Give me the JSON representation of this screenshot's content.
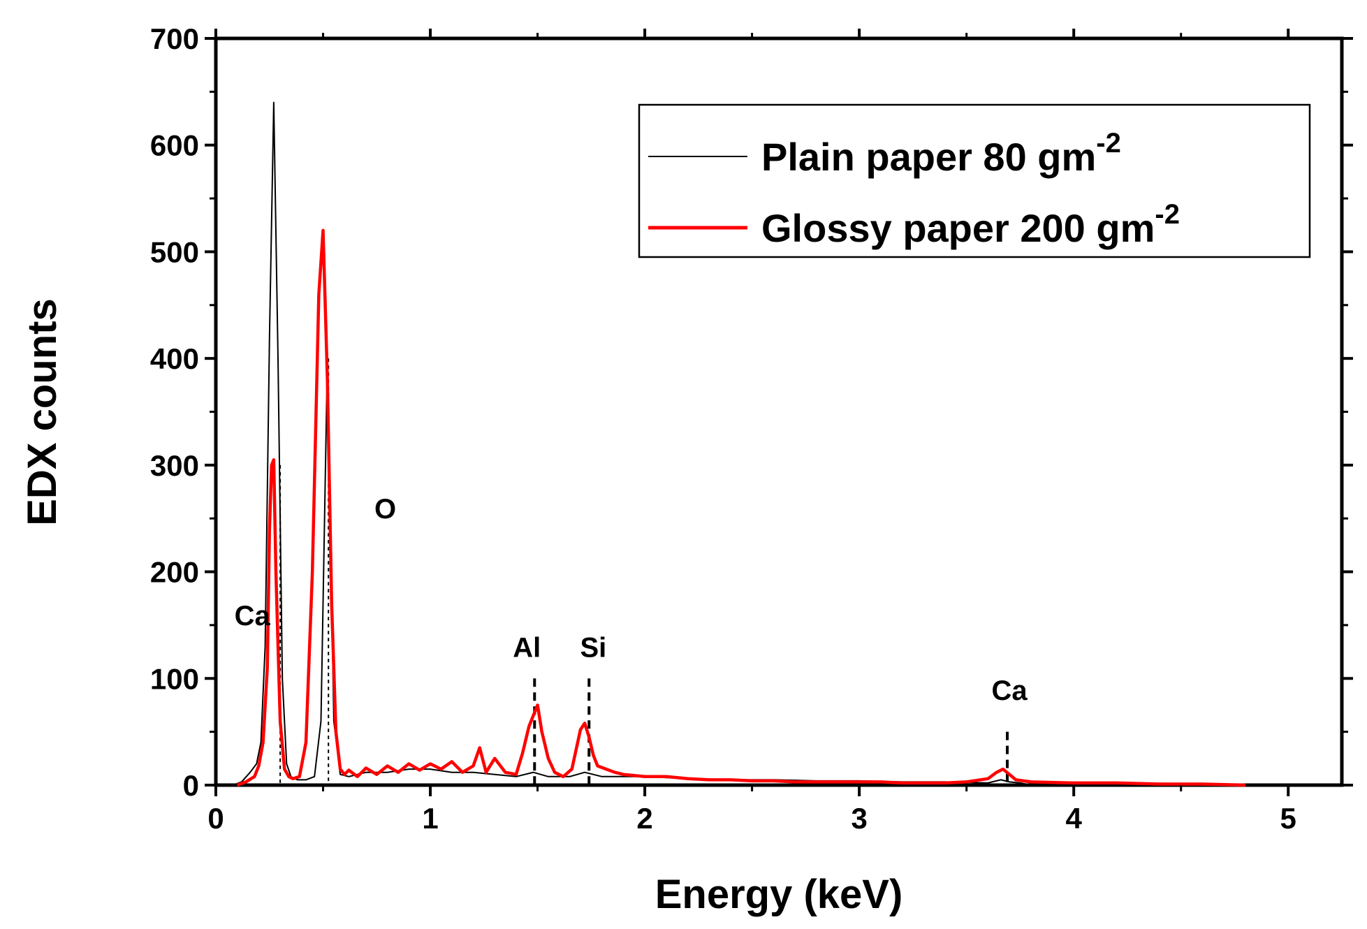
{
  "chart_data": {
    "type": "line",
    "title": "",
    "xlabel": "Energy (keV)",
    "ylabel": "EDX counts",
    "xlim": [
      0,
      5.25
    ],
    "ylim": [
      0,
      700
    ],
    "xticks": [
      0,
      1,
      2,
      3,
      4,
      5
    ],
    "yticks": [
      0,
      100,
      200,
      300,
      400,
      500,
      600,
      700
    ],
    "xtick_labels": [
      "0",
      "1",
      "2",
      "3",
      "4",
      "5"
    ],
    "ytick_labels": [
      "0",
      "100",
      "200",
      "300",
      "400",
      "500",
      "600",
      "700"
    ],
    "grid": false,
    "legend_position": "top-right",
    "series": [
      {
        "name": "Plain paper 80 gm",
        "superscript": "-2",
        "color": "#000000",
        "x": [
          0.08,
          0.12,
          0.16,
          0.19,
          0.21,
          0.23,
          0.25,
          0.27,
          0.29,
          0.31,
          0.33,
          0.35,
          0.38,
          0.42,
          0.46,
          0.49,
          0.52,
          0.55,
          0.58,
          0.62,
          0.7,
          0.8,
          0.9,
          1.0,
          1.1,
          1.2,
          1.3,
          1.4,
          1.48,
          1.55,
          1.65,
          1.72,
          1.8,
          1.9,
          2.0,
          2.2,
          2.4,
          2.6,
          2.8,
          3.0,
          3.2,
          3.4,
          3.6,
          3.66,
          3.7,
          3.75,
          3.8
        ],
        "values": [
          0,
          3,
          12,
          20,
          40,
          130,
          420,
          640,
          400,
          100,
          20,
          8,
          5,
          5,
          8,
          60,
          400,
          60,
          10,
          8,
          12,
          12,
          15,
          15,
          12,
          12,
          10,
          8,
          12,
          8,
          8,
          12,
          8,
          8,
          8,
          6,
          5,
          5,
          4,
          4,
          3,
          3,
          2,
          5,
          3,
          2,
          0
        ]
      },
      {
        "name": "Glossy paper 200 gm",
        "superscript": "-2",
        "color": "#ff0000",
        "x": [
          0.1,
          0.14,
          0.18,
          0.2,
          0.22,
          0.24,
          0.25,
          0.26,
          0.27,
          0.28,
          0.3,
          0.32,
          0.34,
          0.36,
          0.39,
          0.42,
          0.45,
          0.48,
          0.5,
          0.52,
          0.54,
          0.56,
          0.58,
          0.6,
          0.62,
          0.66,
          0.7,
          0.75,
          0.8,
          0.85,
          0.9,
          0.95,
          1.0,
          1.05,
          1.1,
          1.15,
          1.2,
          1.23,
          1.26,
          1.3,
          1.35,
          1.4,
          1.43,
          1.46,
          1.48,
          1.5,
          1.52,
          1.55,
          1.58,
          1.62,
          1.66,
          1.7,
          1.72,
          1.74,
          1.76,
          1.78,
          1.82,
          1.86,
          1.9,
          2.0,
          2.1,
          2.2,
          2.3,
          2.4,
          2.5,
          2.6,
          2.7,
          2.8,
          2.9,
          3.0,
          3.1,
          3.2,
          3.3,
          3.4,
          3.5,
          3.6,
          3.64,
          3.67,
          3.7,
          3.73,
          3.8,
          4.0,
          4.2,
          4.4,
          4.6,
          4.8
        ],
        "values": [
          0,
          3,
          8,
          18,
          40,
          110,
          240,
          300,
          305,
          200,
          60,
          15,
          8,
          6,
          8,
          40,
          200,
          460,
          520,
          380,
          170,
          50,
          15,
          10,
          14,
          8,
          16,
          10,
          18,
          12,
          20,
          14,
          20,
          15,
          22,
          12,
          18,
          35,
          12,
          25,
          12,
          10,
          30,
          55,
          65,
          75,
          50,
          25,
          12,
          8,
          15,
          52,
          58,
          45,
          28,
          18,
          15,
          12,
          10,
          8,
          8,
          6,
          5,
          5,
          4,
          4,
          3,
          3,
          3,
          3,
          3,
          2,
          2,
          2,
          3,
          6,
          12,
          15,
          10,
          5,
          3,
          2,
          2,
          1,
          1,
          0
        ]
      }
    ],
    "reference_lines": [
      {
        "x": 0.3,
        "y_top": 300,
        "style": "dotted"
      },
      {
        "x": 0.525,
        "y_top": 400,
        "style": "dotted"
      },
      {
        "x": 1.486,
        "y_top": 100,
        "style": "dashed"
      },
      {
        "x": 1.74,
        "y_top": 100,
        "style": "dashed"
      },
      {
        "x": 3.69,
        "y_top": 50,
        "style": "dashed"
      }
    ],
    "annotations": [
      {
        "text": "Ca",
        "x": 0.17,
        "y": 150
      },
      {
        "text": "O",
        "x": 0.79,
        "y": 250
      },
      {
        "text": "Al",
        "x": 1.45,
        "y": 120
      },
      {
        "text": "Si",
        "x": 1.76,
        "y": 120
      },
      {
        "text": "Ca",
        "x": 3.7,
        "y": 80
      }
    ]
  }
}
